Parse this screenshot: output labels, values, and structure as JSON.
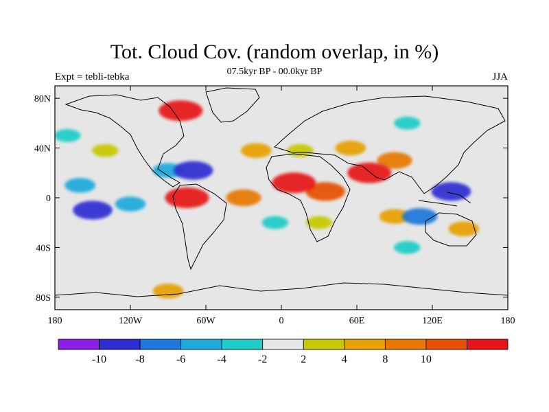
{
  "title": "Tot. Cloud Cov. (random overlap, in %)",
  "subtitle": "07.5kyr BP - 00.0kyr BP",
  "expt_label": "Expt = tebli-tebka",
  "season": "JJA",
  "map": {
    "projection": "cylindrical-equidistant",
    "lon_range": [
      -180,
      180
    ],
    "lat_range": [
      -90,
      90
    ],
    "background_color": "#e6e6e6",
    "lat_ticks": [
      {
        "value": 80,
        "label": "80N"
      },
      {
        "value": 40,
        "label": "40N"
      },
      {
        "value": 0,
        "label": "0"
      },
      {
        "value": -40,
        "label": "40S"
      },
      {
        "value": -80,
        "label": "80S"
      }
    ],
    "lon_ticks": [
      {
        "value": -180,
        "label": "180"
      },
      {
        "value": -120,
        "label": "120W"
      },
      {
        "value": -60,
        "label": "60W"
      },
      {
        "value": 0,
        "label": "0"
      },
      {
        "value": 60,
        "label": "60E"
      },
      {
        "value": 120,
        "label": "120E"
      },
      {
        "value": 180,
        "label": "180"
      }
    ]
  },
  "colorbar": {
    "colors": [
      "#8c1ee6",
      "#2d2dd2",
      "#1e78dc",
      "#1eaadc",
      "#1ecdc8",
      "#e6e6e6",
      "#c8c800",
      "#e6a000",
      "#e67800",
      "#e65000",
      "#e61414"
    ],
    "labels": [
      {
        "boundary": 1,
        "text": "-10"
      },
      {
        "boundary": 2,
        "text": "-8"
      },
      {
        "boundary": 3,
        "text": "-6"
      },
      {
        "boundary": 4,
        "text": "-4"
      },
      {
        "boundary": 5,
        "text": "-2"
      },
      {
        "boundary": 6,
        "text": "2"
      },
      {
        "boundary": 7,
        "text": "4"
      },
      {
        "boundary": 8,
        "text": "8"
      },
      {
        "boundary": 9,
        "text": "10"
      }
    ]
  },
  "anomalies": [
    {
      "region": "north-atlantic-subtropics",
      "lon": -70,
      "lat": 22,
      "level": 1
    },
    {
      "region": "gulf-of-mexico",
      "lon": -90,
      "lat": 22,
      "level": 3
    },
    {
      "region": "east-pacific-south",
      "lon": -150,
      "lat": -10,
      "level": 1
    },
    {
      "region": "east-pacific-band",
      "lon": -120,
      "lat": -5,
      "level": 3
    },
    {
      "region": "central-pacific-north",
      "lon": -160,
      "lat": 10,
      "level": 3
    },
    {
      "region": "west-pacific-maritime",
      "lon": 135,
      "lat": 5,
      "level": 1
    },
    {
      "region": "indian-ocean-south",
      "lon": 110,
      "lat": -15,
      "level": 2
    },
    {
      "region": "southern-ocean-band",
      "lon": 100,
      "lat": -40,
      "level": 4
    },
    {
      "region": "north-pacific",
      "lon": -170,
      "lat": 50,
      "level": 4
    },
    {
      "region": "siberia",
      "lon": 100,
      "lat": 60,
      "level": 4
    },
    {
      "region": "south-atlantic",
      "lon": -5,
      "lat": -20,
      "level": 4
    },
    {
      "region": "sahel",
      "lon": 10,
      "lat": 12,
      "level": 10
    },
    {
      "region": "east-africa",
      "lon": 35,
      "lat": 5,
      "level": 9
    },
    {
      "region": "tropical-atlantic",
      "lon": -30,
      "lat": 0,
      "level": 8
    },
    {
      "region": "northern-south-america",
      "lon": -75,
      "lat": 0,
      "level": 10
    },
    {
      "region": "arabia-india",
      "lon": 70,
      "lat": 20,
      "level": 10
    },
    {
      "region": "tibet",
      "lon": 90,
      "lat": 30,
      "level": 8
    },
    {
      "region": "north-atlantic-40n",
      "lon": -20,
      "lat": 38,
      "level": 7
    },
    {
      "region": "greenland-canada",
      "lon": -80,
      "lat": 70,
      "level": 10
    },
    {
      "region": "central-asia",
      "lon": 55,
      "lat": 40,
      "level": 7
    },
    {
      "region": "southern-africa",
      "lon": 30,
      "lat": -20,
      "level": 6
    },
    {
      "region": "north-pacific-east",
      "lon": -140,
      "lat": 38,
      "level": 6
    },
    {
      "region": "indian-ocean-east",
      "lon": 90,
      "lat": -15,
      "level": 7
    },
    {
      "region": "australia-east",
      "lon": 145,
      "lat": -25,
      "level": 7
    },
    {
      "region": "antarctic-coast",
      "lon": -90,
      "lat": -75,
      "level": 7
    },
    {
      "region": "mediterranean",
      "lon": 15,
      "lat": 38,
      "level": 6
    }
  ]
}
